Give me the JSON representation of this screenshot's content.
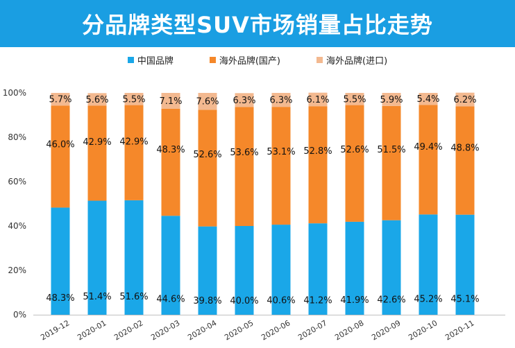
{
  "chart_data": {
    "type": "bar",
    "stacked": true,
    "title": "分品牌类型SUV市场销量占比走势",
    "categories": [
      "2019-12",
      "2020-01",
      "2020-02",
      "2020-03",
      "2020-04",
      "2020-05",
      "2020-06",
      "2020-07",
      "2020-08",
      "2020-09",
      "2020-10",
      "2020-11"
    ],
    "series": [
      {
        "name": "中国品牌",
        "color": "#1aa7e8",
        "values": [
          48.3,
          51.4,
          51.6,
          44.6,
          39.8,
          40.0,
          40.6,
          41.2,
          41.9,
          42.6,
          45.2,
          45.1
        ],
        "labels": [
          "48.3%",
          "51.4%",
          "51.6%",
          "44.6%",
          "39.8%",
          "40.0%",
          "40.6%",
          "41.2%",
          "41.9%",
          "42.6%",
          "45.2%",
          "45.1%"
        ]
      },
      {
        "name": "海外品牌(国产)",
        "color": "#f5882a",
        "values": [
          46.0,
          42.9,
          42.9,
          48.3,
          52.6,
          53.6,
          53.1,
          52.8,
          52.6,
          51.5,
          49.4,
          48.8
        ],
        "labels": [
          "46.0%",
          "42.9%",
          "42.9%",
          "48.3%",
          "52.6%",
          "53.6%",
          "53.1%",
          "52.8%",
          "52.6%",
          "51.5%",
          "49.4%",
          "48.8%"
        ]
      },
      {
        "name": "海外品牌(进口)",
        "color": "#f3b990",
        "values": [
          5.7,
          5.6,
          5.5,
          7.1,
          7.6,
          6.3,
          6.3,
          6.1,
          5.5,
          5.9,
          5.4,
          6.2
        ],
        "labels": [
          "5.7%",
          "5.6%",
          "5.5%",
          "7.1%",
          "7.6%",
          "6.3%",
          "6.3%",
          "6.1%",
          "5.5%",
          "5.9%",
          "5.4%",
          "6.2%"
        ]
      }
    ],
    "y_ticks": [
      "0%",
      "20%",
      "40%",
      "60%",
      "80%",
      "100%"
    ],
    "ylim": [
      0,
      100
    ],
    "legend_position": "top-center",
    "xlabel": "",
    "ylabel": ""
  }
}
